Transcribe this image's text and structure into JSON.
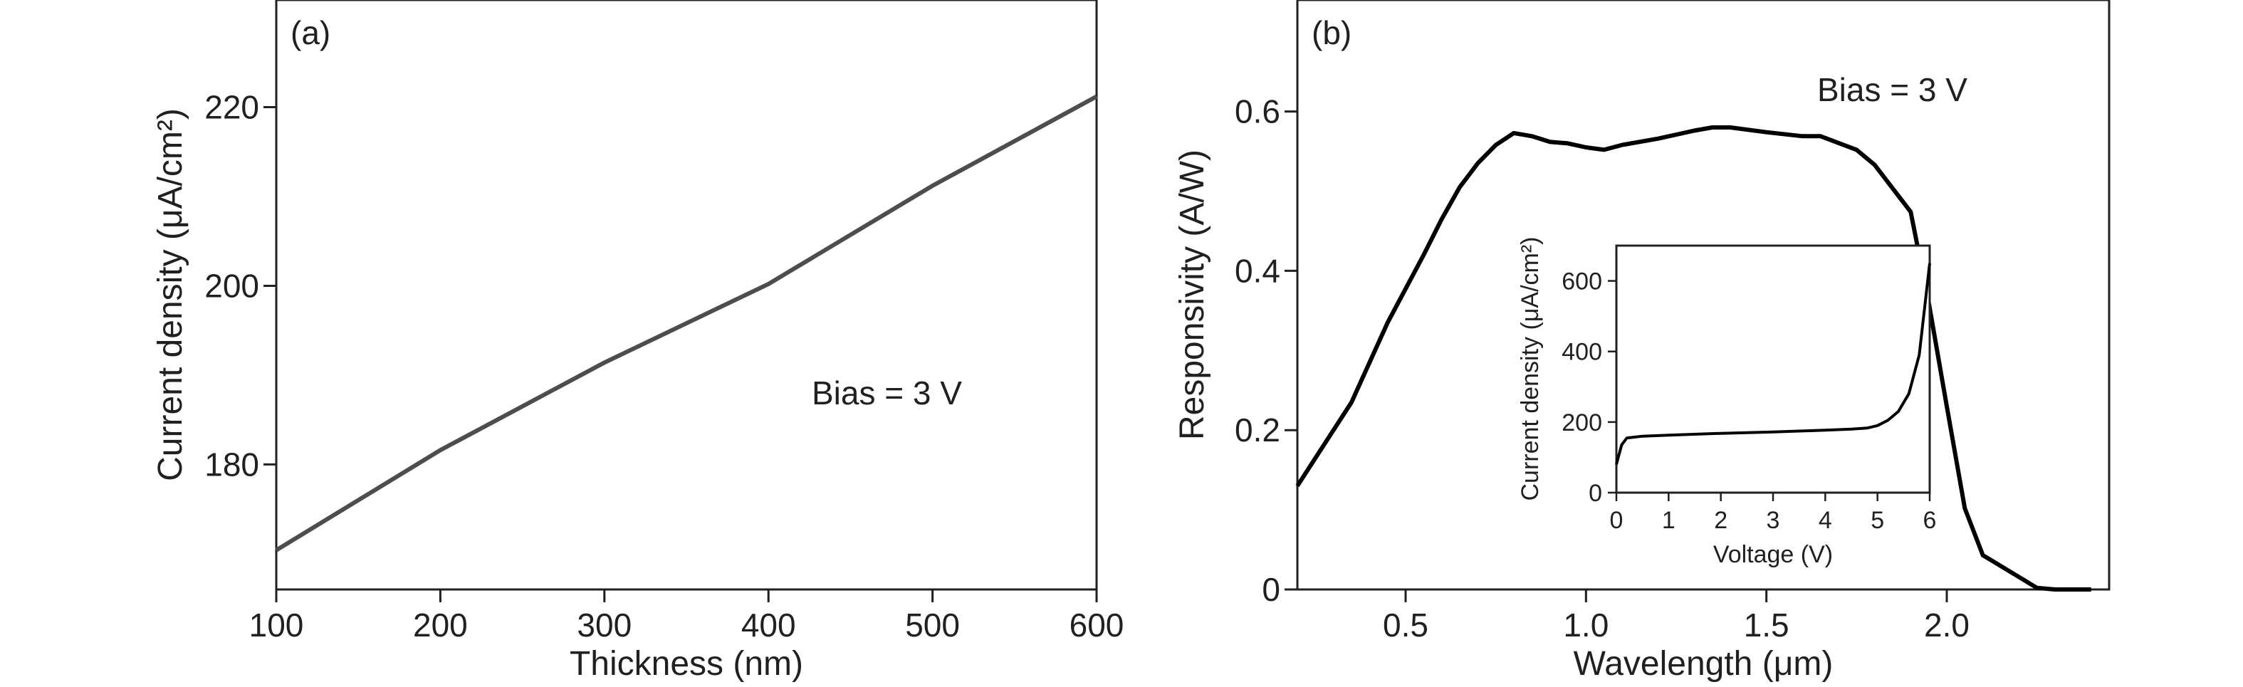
{
  "chart_data": [
    {
      "type": "line",
      "panel_label": "(a)",
      "xlabel": "Thickness (nm)",
      "ylabel": "Current density (μA/cm²)",
      "annotation": "Bias = 3 V",
      "xlim": [
        100,
        600
      ],
      "ylim": [
        166,
        232
      ],
      "xticks": [
        100,
        200,
        300,
        400,
        500,
        600
      ],
      "xtick_labels": [
        "100",
        "200",
        "300",
        "400",
        "500",
        "600"
      ],
      "yticks": [
        180,
        200,
        220
      ],
      "ytick_labels": [
        "180",
        "200",
        "220"
      ],
      "series": [
        {
          "x": [
            100,
            200,
            300,
            400,
            500,
            600
          ],
          "values": [
            170.4,
            181.6,
            191.4,
            200.2,
            211.2,
            221.2
          ],
          "color": "#4d4d4f"
        }
      ]
    },
    {
      "type": "line",
      "panel_label": "(b)",
      "xlabel": "Wavelength (μm)",
      "ylabel": "Responsivity (A/W)",
      "annotation": "Bias = 3 V",
      "xlim": [
        0.2,
        2.45
      ],
      "ylim": [
        0,
        0.74
      ],
      "xticks": [
        0.5,
        1.0,
        1.5,
        2.0
      ],
      "xtick_labels": [
        "0.5",
        "1.0",
        "1.5",
        "2.0"
      ],
      "yticks": [
        0,
        0.2,
        0.4,
        0.6
      ],
      "ytick_labels": [
        "0",
        "0.2",
        "0.4",
        "0.6"
      ],
      "series": [
        {
          "x": [
            0.2,
            0.35,
            0.45,
            0.55,
            0.6,
            0.65,
            0.7,
            0.75,
            0.8,
            0.85,
            0.9,
            0.95,
            1.0,
            1.05,
            1.1,
            1.2,
            1.3,
            1.35,
            1.4,
            1.5,
            1.6,
            1.65,
            1.75,
            1.8,
            1.9,
            1.95,
            2.0,
            2.05,
            2.1,
            2.25,
            2.3,
            2.4
          ],
          "values": [
            0.13,
            0.235,
            0.335,
            0.42,
            0.465,
            0.505,
            0.535,
            0.558,
            0.573,
            0.569,
            0.562,
            0.56,
            0.555,
            0.552,
            0.558,
            0.566,
            0.576,
            0.58,
            0.58,
            0.574,
            0.569,
            0.569,
            0.552,
            0.533,
            0.474,
            0.36,
            0.23,
            0.102,
            0.043,
            0.002,
            0.0,
            0.0
          ],
          "color": "#000000"
        }
      ],
      "inset": {
        "type": "line",
        "xlabel": "Voltage (V)",
        "ylabel": "Current density (μA/cm²)",
        "xlim": [
          0,
          6
        ],
        "ylim": [
          0,
          700
        ],
        "xticks": [
          0,
          1,
          2,
          3,
          4,
          5,
          6
        ],
        "xtick_labels": [
          "0",
          "1",
          "2",
          "3",
          "4",
          "5",
          "6"
        ],
        "yticks": [
          0,
          200,
          400,
          600
        ],
        "ytick_labels": [
          "0",
          "200",
          "400",
          "600"
        ],
        "series": [
          {
            "x": [
              0,
              0.1,
              0.2,
              0.5,
              1,
              2,
              3,
              4,
              4.5,
              4.8,
              5.0,
              5.2,
              5.4,
              5.6,
              5.8,
              6.0
            ],
            "values": [
              80,
              135,
              155,
              160,
              163,
              168,
              172,
              177,
              180,
              183,
              190,
              205,
              230,
              280,
              390,
              650
            ],
            "color": "#000000"
          }
        ]
      }
    }
  ]
}
